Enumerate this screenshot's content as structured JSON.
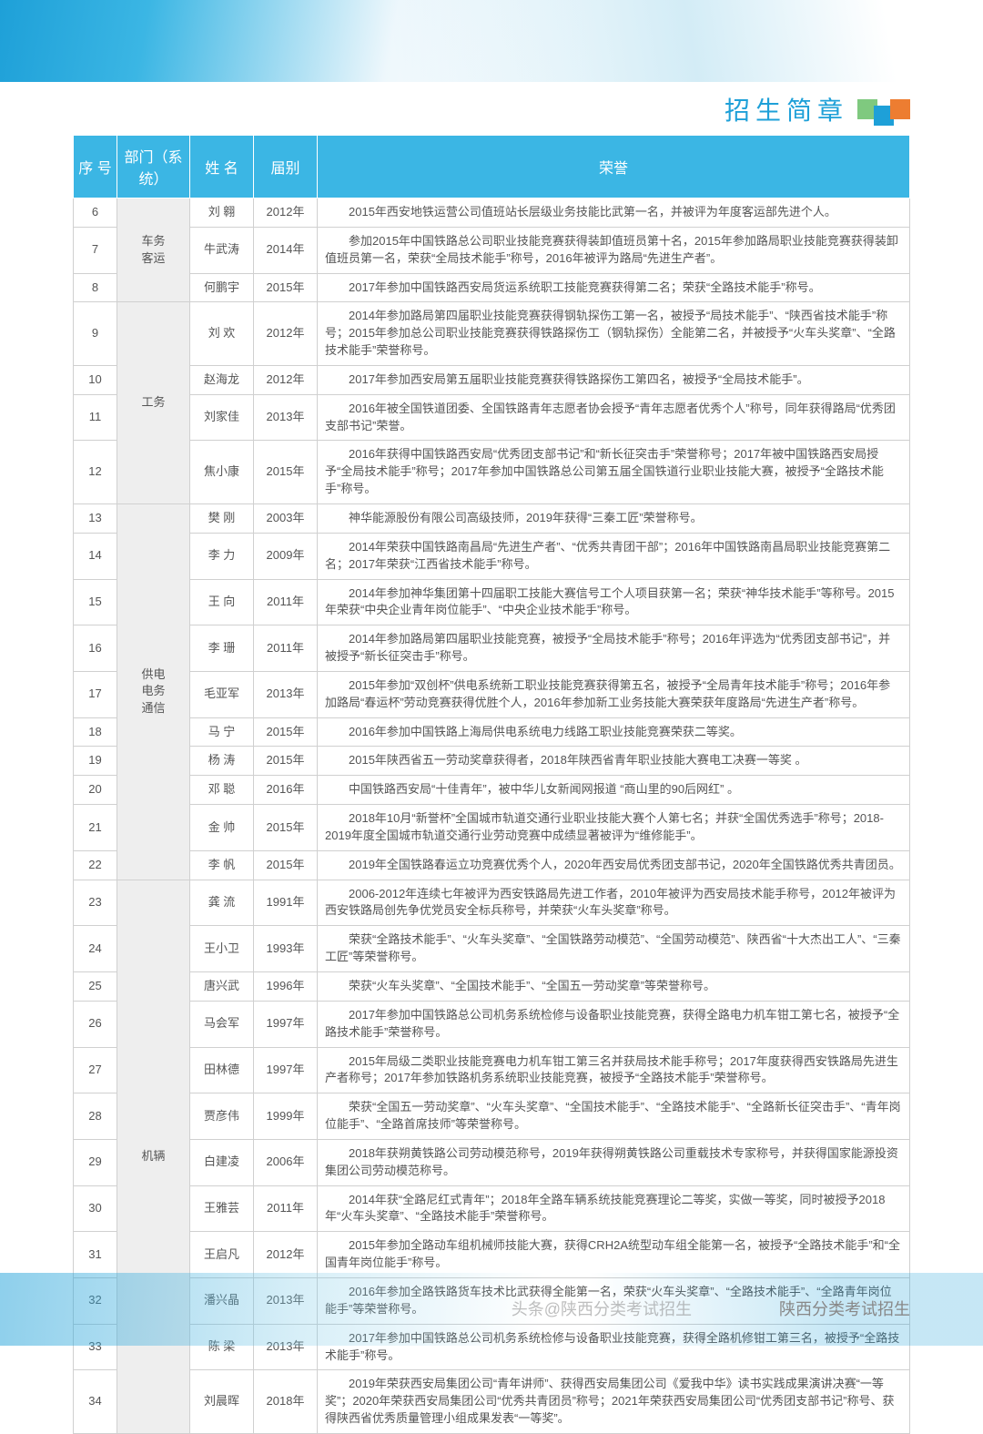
{
  "page": {
    "title": "招生简章",
    "header_colors": {
      "title": "#1ea0d8",
      "sq1": "#7fc97f",
      "sq2": "#1ea0d8",
      "sq3": "#ed7d31"
    },
    "table_header_bg": "#3bb6e4",
    "columns": [
      "序 号",
      "部门（系统）",
      "姓 名",
      "届别",
      "荣誉"
    ],
    "footer_watermark_left": "头条@陕西分类考试招生",
    "footer_watermark_right": "陕西分类考试招生"
  },
  "rows": [
    {
      "seq": "6",
      "dept": "车务\n客运",
      "dept_rowspan": 3,
      "name": "刘 翱",
      "year": "2012年",
      "honor": "2015年西安地铁运营公司值班站长层级业务技能比武第一名，并被评为年度客运部先进个人。"
    },
    {
      "seq": "7",
      "name": "牛武涛",
      "year": "2014年",
      "honor": "参加2015年中国铁路总公司职业技能竞赛获得装卸值班员第十名，2015年参加路局职业技能竞赛获得装卸值班员第一名，荣获“全局技术能手”称号，2016年被评为路局“先进生产者”。"
    },
    {
      "seq": "8",
      "name": "何鹏宇",
      "year": "2015年",
      "honor": "2017年参加中国铁路西安局货运系统职工技能竞赛获得第二名；荣获“全路技术能手”称号。"
    },
    {
      "seq": "9",
      "dept": "工务",
      "dept_rowspan": 4,
      "name": "刘 欢",
      "year": "2012年",
      "honor": "2014年参加路局第四届职业技能竞赛获得钢轨探伤工第一名，被授予“局技术能手”、“陕西省技术能手”称号；2015年参加总公司职业技能竞赛获得铁路探伤工（钢轨探伤）全能第二名，并被授予“火车头奖章”、“全路技术能手”荣誉称号。"
    },
    {
      "seq": "10",
      "name": "赵海龙",
      "year": "2012年",
      "honor": "2017年参加西安局第五届职业技能竞赛获得铁路探伤工第四名，被授予“全局技术能手”。"
    },
    {
      "seq": "11",
      "name": "刘家佳",
      "year": "2013年",
      "honor": "2016年被全国铁道团委、全国铁路青年志愿者协会授予“青年志愿者优秀个人”称号，同年获得路局“优秀团支部书记”荣誉。"
    },
    {
      "seq": "12",
      "name": "焦小康",
      "year": "2015年",
      "honor": "2016年获得中国铁路西安局“优秀团支部书记”和“新长征突击手”荣誉称号；2017年被中国铁路西安局授予“全局技术能手”称号；2017年参加中国铁路总公司第五届全国铁道行业职业技能大赛，被授予“全路技术能手”称号。"
    },
    {
      "seq": "13",
      "dept": "供电\n电务\n通信",
      "dept_rowspan": 10,
      "name": "樊 刚",
      "year": "2003年",
      "honor": "神华能源股份有限公司高级技师，2019年获得“三秦工匠”荣誉称号。"
    },
    {
      "seq": "14",
      "name": "李 力",
      "year": "2009年",
      "honor": "2014年荣获中国铁路南昌局“先进生产者”、“优秀共青团干部”；2016年中国铁路南昌局职业技能竞赛第二名；2017年荣获“江西省技术能手”称号。"
    },
    {
      "seq": "15",
      "name": "王 向",
      "year": "2011年",
      "honor": "2014年参加神华集团第十四届职工技能大赛信号工个人项目获第一名；荣获“神华技术能手”等称号。2015年荣获“中央企业青年岗位能手”、“中央企业技术能手”称号。"
    },
    {
      "seq": "16",
      "name": "李 珊",
      "year": "2011年",
      "honor": "2014年参加路局第四届职业技能竞赛，被授予“全局技术能手”称号；2016年评选为“优秀团支部书记”，并被授予“新长征突击手”称号。"
    },
    {
      "seq": "17",
      "name": "毛亚军",
      "year": "2013年",
      "honor": "2015年参加“双创杯”供电系统新工职业技能竞赛获得第五名，被授予“全局青年技术能手”称号；2016年参加路局“春运杯”劳动竞赛获得优胜个人，2016年参加新工业务技能大赛荣获年度路局“先进生产者”称号。"
    },
    {
      "seq": "18",
      "name": "马 宁",
      "year": "2015年",
      "honor": "2016年参加中国铁路上海局供电系统电力线路工职业技能竞赛荣获二等奖。"
    },
    {
      "seq": "19",
      "name": "杨 涛",
      "year": "2015年",
      "honor": "2015年陕西省五一劳动奖章获得者，2018年陕西省青年职业技能大赛电工决赛一等奖 。"
    },
    {
      "seq": "20",
      "name": "邓 聪",
      "year": "2016年",
      "honor": "中国铁路西安局“十佳青年”，被中华儿女新闻网报道 “商山里的90后网红” 。"
    },
    {
      "seq": "21",
      "name": "金 帅",
      "year": "2015年",
      "honor": "2018年10月“新誉杯”全国城市轨道交通行业职业技能大赛个人第七名；并获“全国优秀选手”称号；2018-2019年度全国城市轨道交通行业劳动竞赛中成绩显著被评为“维修能手”。"
    },
    {
      "seq": "22",
      "name": "李 帆",
      "year": "2015年",
      "honor": "2019年全国铁路春运立功竞赛优秀个人，2020年西安局优秀团支部书记，2020年全国铁路优秀共青团员。"
    },
    {
      "seq": "23",
      "dept": "机辆",
      "dept_rowspan": 12,
      "name": "龚 流",
      "year": "1991年",
      "honor": "2006-2012年连续七年被评为西安铁路局先进工作者，2010年被评为西安局技术能手称号，2012年被评为西安铁路局创先争优党员安全标兵称号，并荣获“火车头奖章”称号。"
    },
    {
      "seq": "24",
      "name": "王小卫",
      "year": "1993年",
      "honor": "荣获“全路技术能手”、“火车头奖章”、“全国铁路劳动模范”、“全国劳动模范”、陕西省“十大杰出工人”、“三秦工匠”等荣誉称号。"
    },
    {
      "seq": "25",
      "name": "唐兴武",
      "year": "1996年",
      "honor": "荣获“火车头奖章”、“全国技术能手”、“全国五一劳动奖章”等荣誉称号。"
    },
    {
      "seq": "26",
      "name": "马会军",
      "year": "1997年",
      "honor": "2017年参加中国铁路总公司机务系统检修与设备职业技能竞赛，获得全路电力机车钳工第七名，被授予“全路技术能手”荣誉称号。"
    },
    {
      "seq": "27",
      "name": "田林德",
      "year": "1997年",
      "honor": "2015年局级二类职业技能竞赛电力机车钳工第三名并获局技术能手称号；2017年度获得西安铁路局先进生产者称号；2017年参加铁路机务系统职业技能竞赛，被授予“全路技术能手”荣誉称号。"
    },
    {
      "seq": "28",
      "name": "贾彦伟",
      "year": "1999年",
      "honor": "荣获“全国五一劳动奖章”、“火车头奖章”、“全国技术能手”、“全路技术能手”、“全路新长征突击手”、“青年岗位能手”、“全路首席技师”等荣誉称号。"
    },
    {
      "seq": "29",
      "name": "白建凌",
      "year": "2006年",
      "honor": "2018年获朔黄铁路公司劳动模范称号，2019年获得朔黄铁路公司重载技术专家称号，并获得国家能源投资集团公司劳动模范称号。"
    },
    {
      "seq": "30",
      "name": "王雅芸",
      "year": "2011年",
      "honor": "2014年获“全路尼红式青年”；2018年全路车辆系统技能竞赛理论二等奖，实做一等奖，同时被授予2018年“火车头奖章”、“全路技术能手”荣誉称号。"
    },
    {
      "seq": "31",
      "name": "王启凡",
      "year": "2012年",
      "honor": "2015年参加全路动车组机械师技能大赛，获得CRH2A统型动车组全能第一名，被授予“全路技术能手”和“全国青年岗位能手”称号。"
    },
    {
      "seq": "32",
      "name": "潘兴晶",
      "year": "2013年",
      "honor": "2016年参加全路铁路货车技术比武获得全能第一名，荣获“火车头奖章”、“全路技术能手”、“全路青年岗位能手”等荣誉称号。"
    },
    {
      "seq": "33",
      "name": "陈 梁",
      "year": "2013年",
      "honor": "2017年参加中国铁路总公司机务系统检修与设备职业技能竞赛，获得全路机修钳工第三名，被授予“全路技术能手”称号。"
    },
    {
      "seq": "34",
      "name": "刘晨晖",
      "year": "2018年",
      "honor": "2019年荣获西安局集团公司“青年讲师”、获得西安局集团公司《爱我中华》读书实践成果演讲决赛“一等奖”；2020年荣获西安局集团公司“优秀共青团员”称号；2021年荣获西安局集团公司“优秀团支部书记”称号、获得陕西省优秀质量管理小组成果发表“一等奖”。"
    }
  ]
}
